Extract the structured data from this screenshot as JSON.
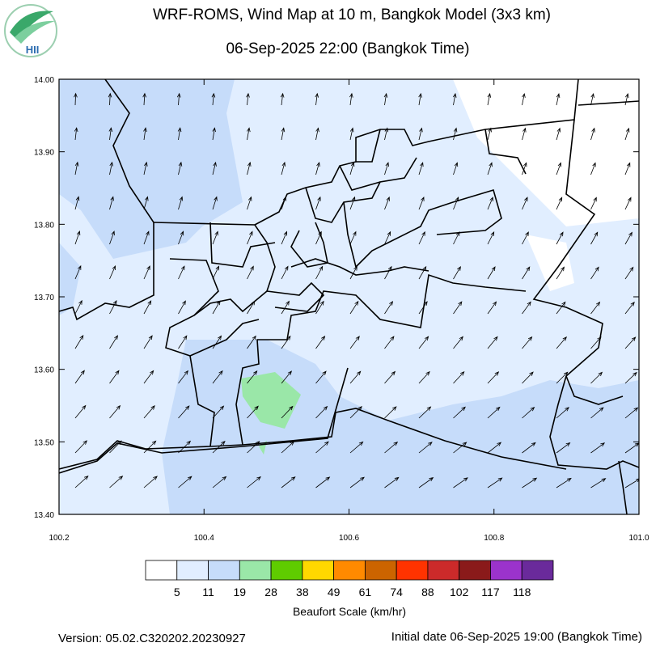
{
  "header": {
    "title": "WRF-ROMS, Wind Map at 10 m, Bangkok Model (3x3 km)",
    "subtitle": "06-Sep-2025 22:00 (Bangkok Time)"
  },
  "logo": {
    "text": "HII"
  },
  "map": {
    "lat_labels": [
      "14.00",
      "13.90",
      "13.80",
      "13.70",
      "13.60",
      "13.50",
      "13.40"
    ],
    "lon_labels": [
      "100.2",
      "100.4",
      "100.6",
      "100.8",
      "101.0"
    ]
  },
  "legend": {
    "colors": [
      "#ffffff",
      "#e1eeff",
      "#c6dcfa",
      "#9ae7a8",
      "#5fcc00",
      "#ffd800",
      "#ff8a00",
      "#cc6400",
      "#ff3300",
      "#cc2a2a",
      "#8a1a1a",
      "#9b33cc",
      "#6a2a9b"
    ],
    "labels": [
      "5",
      "11",
      "19",
      "28",
      "38",
      "49",
      "61",
      "74",
      "88",
      "102",
      "117",
      "118"
    ],
    "title": "Beaufort Scale (km/hr)"
  },
  "footer": {
    "version": "Version: 05.02.C320202.20230927",
    "initial": "Initial date 06-Sep-2025 19:00 (Bangkok Time)"
  }
}
